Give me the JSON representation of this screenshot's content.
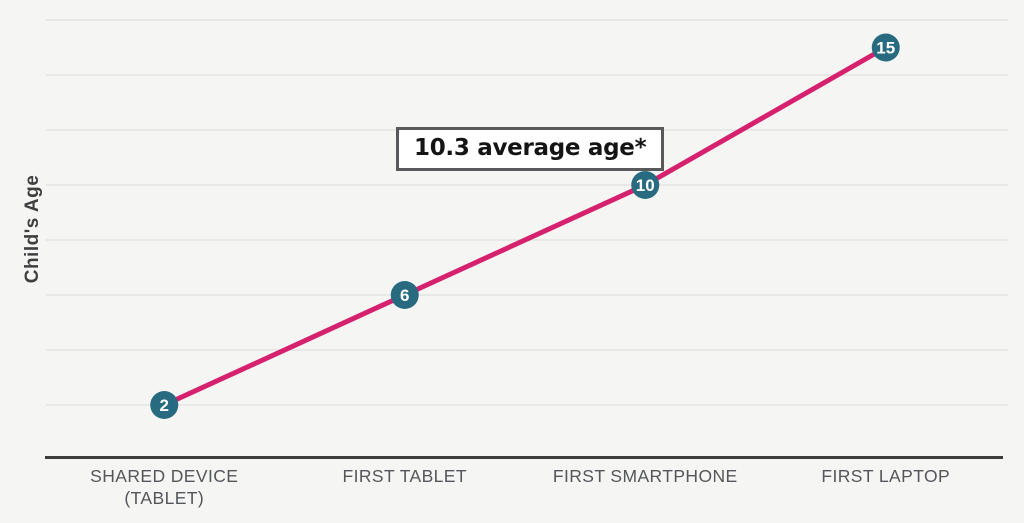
{
  "chart_data": {
    "type": "line",
    "categories": [
      "SHARED DEVICE\n(TABLET)",
      "FIRST TABLET",
      "FIRST SMARTPHONE",
      "FIRST LAPTOP"
    ],
    "values": [
      2,
      6,
      10,
      15
    ],
    "ylabel": "Child's Age",
    "xlabel": "",
    "ylim": [
      0,
      16
    ],
    "grid_step": 2,
    "grid": true,
    "legend": "none",
    "annotation": {
      "text": "10.3 average age*"
    },
    "colors": {
      "background": "#f5f6f4",
      "grid": "#e3e3e1",
      "axis": "#3d3d3d",
      "line": "#d6216e",
      "marker_fill": "#286b80",
      "marker_text": "#ffffff",
      "x_labels": "#54565a",
      "y_label": "#3f3f3f",
      "annotation_border": "#58595b",
      "annotation_bg": "#ffffff",
      "annotation_text": "#141414"
    }
  }
}
